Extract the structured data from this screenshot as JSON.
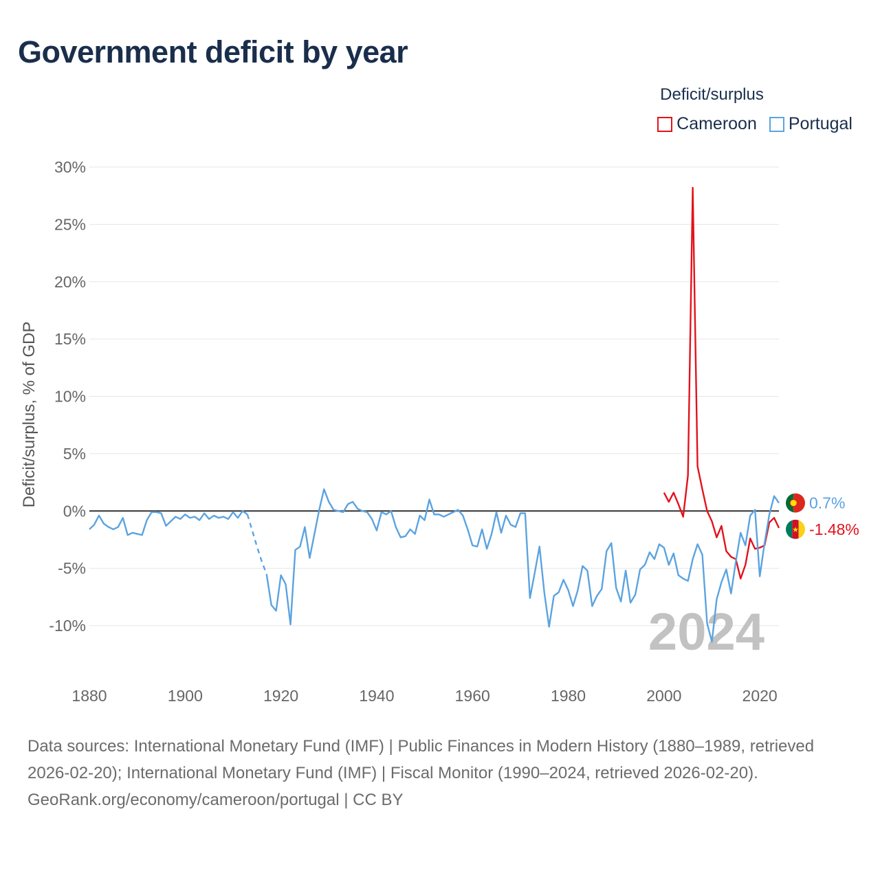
{
  "title": "Government deficit by year",
  "legend": {
    "title": "Deficit/surplus",
    "items": [
      {
        "label": "Cameroon",
        "color": "#e3121b"
      },
      {
        "label": "Portugal",
        "color": "#5ba3e0"
      }
    ]
  },
  "footer": {
    "sources": "Data sources: International Monetary Fund (IMF) | Public Finances in Modern History (1880–1989, retrieved 2026-02-20); International Monetary Fund (IMF) | Fiscal Monitor (1990–2024, retrieved 2026-02-20).",
    "credit": "GeoRank.org/economy/cameroon/portugal | CC BY"
  },
  "chart_data": {
    "type": "line",
    "title": "Government deficit by year",
    "xlabel": "",
    "ylabel": "Deficit/surplus, % of GDP",
    "xlim": [
      1880,
      2024
    ],
    "ylim": [
      -14,
      30
    ],
    "yticks": [
      30,
      25,
      20,
      15,
      10,
      5,
      0,
      -5,
      -10
    ],
    "ytick_labels": [
      "30%",
      "25%",
      "20%",
      "15%",
      "10%",
      "5%",
      "0%",
      "-5%",
      "-10%"
    ],
    "xticks": [
      1880,
      1900,
      1920,
      1940,
      1960,
      1980,
      2000,
      2020
    ],
    "xtick_labels": [
      "1880",
      "1900",
      "1920",
      "1940",
      "1960",
      "1980",
      "2000",
      "2020"
    ],
    "year_watermark": "2024",
    "grid": true,
    "series": [
      {
        "name": "Cameroon",
        "color": "#e3121b",
        "end_label": "-1.48%",
        "x": [
          2000,
          2001,
          2002,
          2003,
          2004,
          2005,
          2006,
          2007,
          2008,
          2009,
          2010,
          2011,
          2012,
          2013,
          2014,
          2015,
          2016,
          2017,
          2018,
          2019,
          2020,
          2021,
          2022,
          2023,
          2024
        ],
        "y": [
          1.6,
          0.8,
          1.6,
          0.6,
          -0.5,
          3.1,
          28.2,
          3.9,
          1.9,
          0.0,
          -0.9,
          -2.3,
          -1.3,
          -3.5,
          -4.0,
          -4.2,
          -5.9,
          -4.7,
          -2.4,
          -3.3,
          -3.2,
          -3.0,
          -1.0,
          -0.6,
          -1.48
        ]
      },
      {
        "name": "Portugal",
        "color": "#5ba3e0",
        "end_label": "0.7%",
        "x": [
          1880,
          1881,
          1882,
          1883,
          1884,
          1885,
          1886,
          1887,
          1888,
          1889,
          1890,
          1891,
          1892,
          1893,
          1894,
          1895,
          1896,
          1897,
          1898,
          1899,
          1900,
          1901,
          1902,
          1903,
          1904,
          1905,
          1906,
          1907,
          1908,
          1909,
          1910,
          1911,
          1912,
          1913,
          1914,
          1915,
          1916,
          1917,
          1918,
          1919,
          1920,
          1921,
          1922,
          1923,
          1924,
          1925,
          1926,
          1927,
          1928,
          1929,
          1930,
          1931,
          1932,
          1933,
          1934,
          1935,
          1936,
          1937,
          1938,
          1939,
          1940,
          1941,
          1942,
          1943,
          1944,
          1945,
          1946,
          1947,
          1948,
          1949,
          1950,
          1951,
          1952,
          1953,
          1954,
          1955,
          1956,
          1957,
          1958,
          1959,
          1960,
          1961,
          1962,
          1963,
          1964,
          1965,
          1966,
          1967,
          1968,
          1969,
          1970,
          1971,
          1972,
          1973,
          1974,
          1975,
          1976,
          1977,
          1978,
          1979,
          1980,
          1981,
          1982,
          1983,
          1984,
          1985,
          1986,
          1987,
          1988,
          1989,
          1990,
          1991,
          1992,
          1993,
          1994,
          1995,
          1996,
          1997,
          1998,
          1999,
          2000,
          2001,
          2002,
          2003,
          2004,
          2005,
          2006,
          2007,
          2008,
          2009,
          2010,
          2011,
          2012,
          2013,
          2014,
          2015,
          2016,
          2017,
          2018,
          2019,
          2020,
          2021,
          2022,
          2023,
          2024
        ],
        "y": [
          -1.6,
          -1.2,
          -0.4,
          -1.1,
          -1.4,
          -1.6,
          -1.4,
          -0.6,
          -2.1,
          -1.9,
          -2.0,
          -2.1,
          -0.8,
          -0.1,
          -0.1,
          -0.2,
          -1.3,
          -0.9,
          -0.5,
          -0.7,
          -0.3,
          -0.6,
          -0.5,
          -0.8,
          -0.2,
          -0.7,
          -0.4,
          -0.6,
          -0.5,
          -0.7,
          -0.1,
          -0.6,
          0.0,
          -0.3,
          -1.7,
          -3.1,
          -4.4,
          -5.5,
          -8.2,
          -8.7,
          -5.6,
          -6.4,
          -9.9,
          -3.4,
          -3.1,
          -1.4,
          -4.1,
          -2.0,
          0.1,
          1.9,
          0.8,
          0.1,
          0.0,
          -0.1,
          0.6,
          0.8,
          0.2,
          0.0,
          -0.1,
          -0.7,
          -1.7,
          -0.1,
          -0.3,
          0.0,
          -1.4,
          -2.3,
          -2.2,
          -1.6,
          -2.0,
          -0.4,
          -0.8,
          1.0,
          -0.3,
          -0.3,
          -0.5,
          -0.3,
          -0.1,
          0.1,
          -0.4,
          -1.6,
          -3.0,
          -3.1,
          -1.6,
          -3.3,
          -2.0,
          -0.1,
          -1.9,
          -0.4,
          -1.2,
          -1.4,
          -0.2,
          -0.2,
          -7.6,
          -5.4,
          -3.1,
          -7.1,
          -10.1,
          -7.4,
          -7.1,
          -6.0,
          -6.9,
          -8.3,
          -6.9,
          -4.8,
          -5.2,
          -8.3,
          -7.4,
          -6.8,
          -3.5,
          -2.8,
          -6.7,
          -7.9,
          -5.2,
          -8.0,
          -7.3,
          -5.1,
          -4.7,
          -3.6,
          -4.2,
          -2.9,
          -3.2,
          -4.7,
          -3.7,
          -5.6,
          -5.9,
          -6.1,
          -4.2,
          -2.9,
          -3.8,
          -9.8,
          -11.4,
          -7.7,
          -6.2,
          -5.1,
          -7.2,
          -4.4,
          -1.9,
          -3.0,
          -0.4,
          0.1,
          -5.7,
          -2.8,
          -0.3,
          1.3,
          0.7
        ]
      }
    ]
  }
}
